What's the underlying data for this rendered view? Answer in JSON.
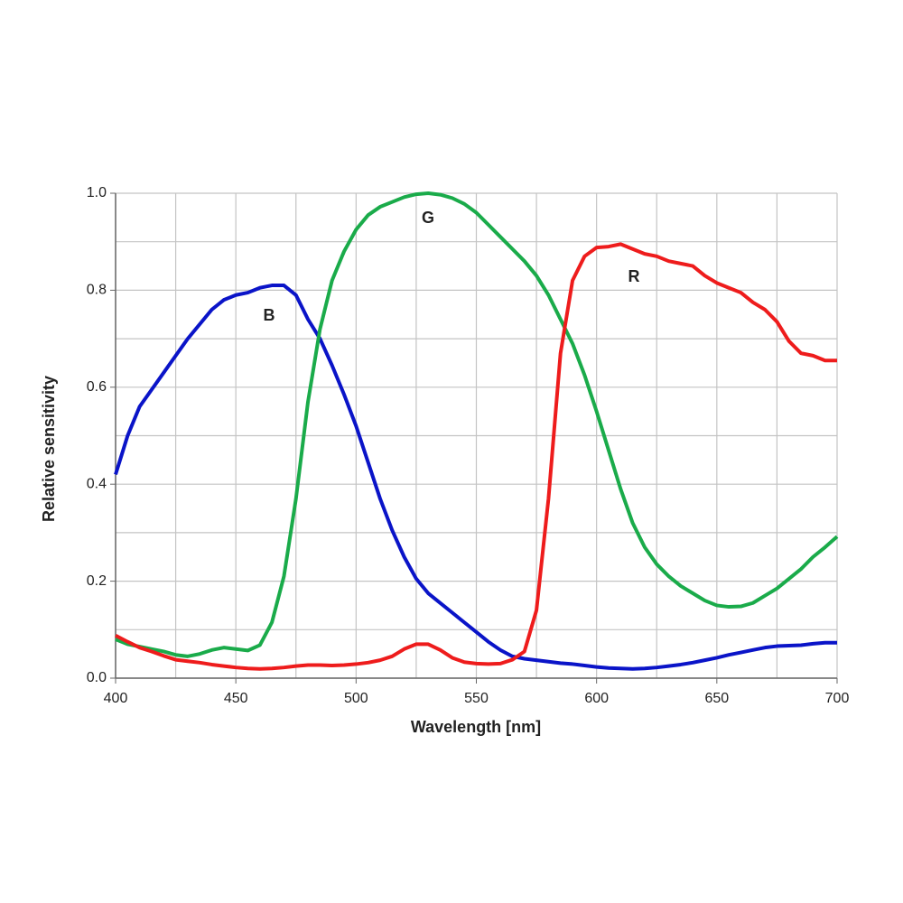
{
  "chart_data": {
    "type": "line",
    "xlabel": "Wavelength [nm]",
    "ylabel": "Relative sensitivity",
    "x": [
      400,
      405,
      410,
      415,
      420,
      425,
      430,
      435,
      440,
      445,
      450,
      455,
      460,
      465,
      470,
      475,
      480,
      485,
      490,
      495,
      500,
      505,
      510,
      515,
      520,
      525,
      530,
      535,
      540,
      545,
      550,
      555,
      560,
      565,
      570,
      575,
      580,
      585,
      590,
      595,
      600,
      605,
      610,
      615,
      620,
      625,
      630,
      635,
      640,
      645,
      650,
      655,
      660,
      665,
      670,
      675,
      680,
      685,
      690,
      695,
      700
    ],
    "series": [
      {
        "name": "B",
        "color": "#0a14c8",
        "values": [
          0.42,
          0.5,
          0.56,
          0.595,
          0.63,
          0.665,
          0.7,
          0.73,
          0.76,
          0.78,
          0.79,
          0.795,
          0.805,
          0.81,
          0.81,
          0.79,
          0.74,
          0.7,
          0.645,
          0.585,
          0.52,
          0.445,
          0.37,
          0.305,
          0.25,
          0.205,
          0.175,
          0.155,
          0.135,
          0.115,
          0.095,
          0.075,
          0.058,
          0.045,
          0.04,
          0.037,
          0.034,
          0.031,
          0.029,
          0.026,
          0.023,
          0.021,
          0.02,
          0.019,
          0.02,
          0.022,
          0.025,
          0.028,
          0.032,
          0.037,
          0.042,
          0.048,
          0.053,
          0.058,
          0.063,
          0.066,
          0.067,
          0.068,
          0.071,
          0.073,
          0.073
        ]
      },
      {
        "name": "G",
        "color": "#1aab4a",
        "values": [
          0.08,
          0.07,
          0.065,
          0.06,
          0.055,
          0.048,
          0.045,
          0.05,
          0.058,
          0.063,
          0.06,
          0.057,
          0.068,
          0.115,
          0.21,
          0.37,
          0.57,
          0.72,
          0.82,
          0.88,
          0.925,
          0.955,
          0.972,
          0.982,
          0.992,
          0.998,
          1.0,
          0.997,
          0.99,
          0.978,
          0.96,
          0.935,
          0.91,
          0.885,
          0.86,
          0.83,
          0.79,
          0.74,
          0.69,
          0.625,
          0.55,
          0.47,
          0.39,
          0.32,
          0.27,
          0.235,
          0.21,
          0.19,
          0.175,
          0.16,
          0.15,
          0.147,
          0.148,
          0.155,
          0.17,
          0.185,
          0.205,
          0.225,
          0.25,
          0.27,
          0.292
        ]
      },
      {
        "name": "R",
        "color": "#ee1c1c",
        "values": [
          0.088,
          0.075,
          0.063,
          0.055,
          0.046,
          0.038,
          0.035,
          0.032,
          0.028,
          0.025,
          0.022,
          0.02,
          0.019,
          0.02,
          0.022,
          0.025,
          0.027,
          0.027,
          0.026,
          0.027,
          0.029,
          0.032,
          0.037,
          0.045,
          0.06,
          0.07,
          0.07,
          0.058,
          0.042,
          0.033,
          0.03,
          0.029,
          0.03,
          0.038,
          0.055,
          0.14,
          0.37,
          0.67,
          0.82,
          0.87,
          0.888,
          0.89,
          0.895,
          0.885,
          0.875,
          0.87,
          0.86,
          0.855,
          0.85,
          0.83,
          0.815,
          0.805,
          0.795,
          0.775,
          0.76,
          0.735,
          0.695,
          0.67,
          0.665,
          0.655,
          0.655
        ]
      }
    ],
    "xlim": [
      400,
      700
    ],
    "ylim": [
      0,
      1
    ],
    "xticks": [
      400,
      450,
      500,
      550,
      600,
      650,
      700
    ],
    "yticks": [
      {
        "value": 0,
        "label": "0.0"
      },
      0.2,
      0.4,
      0.6,
      0.8,
      {
        "value": 1,
        "label": "1.0"
      }
    ],
    "minor_xticks": [
      425,
      475,
      525,
      575,
      625,
      675
    ],
    "minor_yticks": [
      0.1,
      0.3,
      0.5,
      0.7,
      0.9
    ],
    "grid": true
  }
}
